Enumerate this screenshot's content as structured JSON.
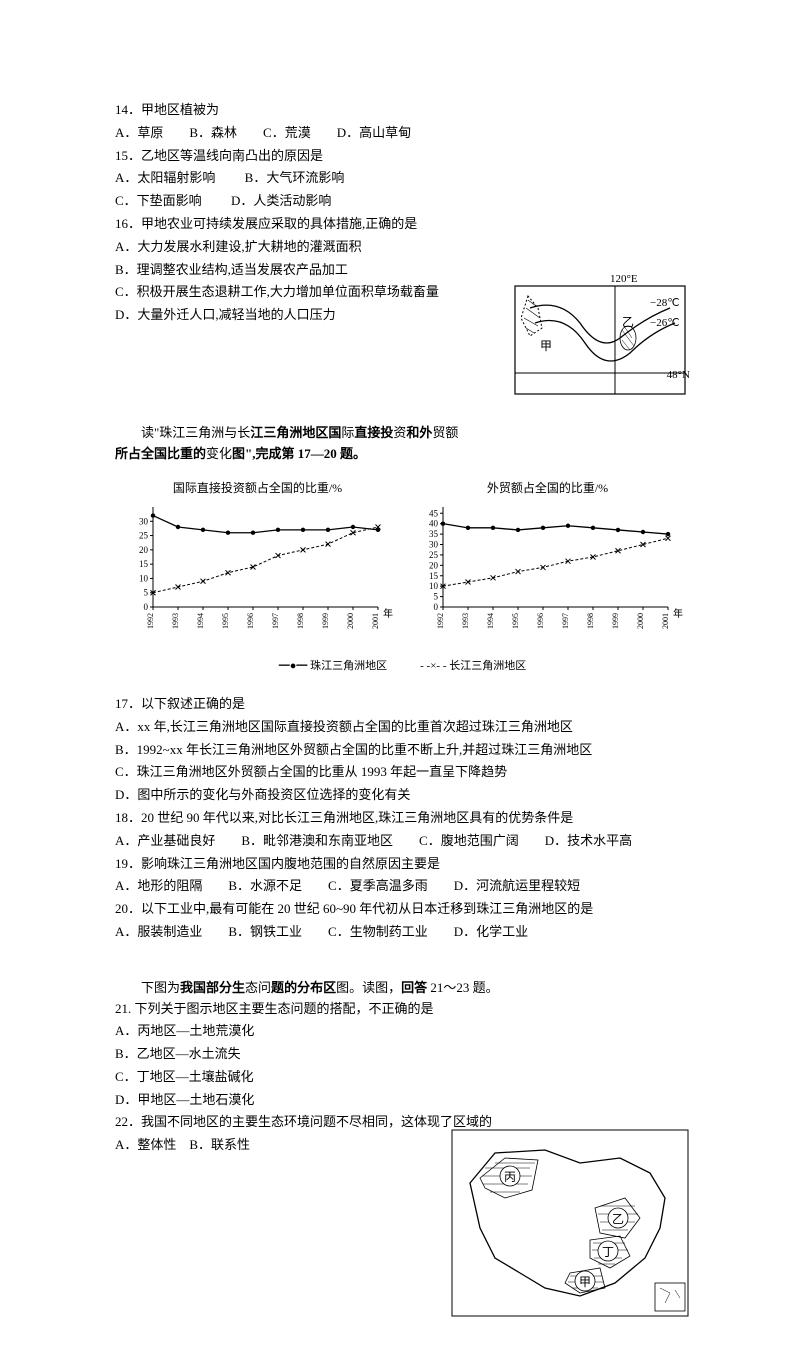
{
  "q14": {
    "stem": "14．甲地区植被为",
    "options": "A．草原　　B．森林　　C．荒漠　　D．高山草甸"
  },
  "q15": {
    "stem": "15．乙地区等温线向南凸出的原因是",
    "optA": "A．太阳辐射影响",
    "optB": "B．大气环流影响",
    "optC": "C．下垫面影响",
    "optD": "D．人类活动影响"
  },
  "q16": {
    "stem": "16．甲地农业可持续发展应采取的具体措施,正确的是",
    "optA": "A．大力发展水利建设,扩大耕地的灌溉面积",
    "optB": "B．理调整农业结构,适当发展农产品加工",
    "optC": "C．积极开展生态退耕工作,大力增加单位面积草场载畜量",
    "optD": "D．大量外迁人口,减轻当地的人口压力"
  },
  "map1": {
    "lon": "120°E",
    "t1": "−28℃",
    "t2": "−26℃",
    "jia": "甲",
    "yi": "乙",
    "lat": "48°N"
  },
  "intro1a": "　　读\"珠江三角洲与长",
  "intro1b": "江三角洲地区国",
  "intro1c": "际",
  "intro1d": "直接投",
  "intro1e": "资",
  "intro1f": "和外",
  "intro1g": "贸额",
  "intro1h": "所占全国比重的",
  "intro1i": "变化",
  "intro1j": "图\",完成第 17—20 题。",
  "chart1": {
    "title": "国际直接投资额占全国的比重/%",
    "ylabels": [
      "30",
      "25",
      "20",
      "15",
      "10",
      "5",
      "0"
    ],
    "xlabels": [
      "1992",
      "1993",
      "1994",
      "1995",
      "1996",
      "1997",
      "1998",
      "1999",
      "2000",
      "2001"
    ],
    "xlabel_suffix": "年",
    "prd": [
      32,
      28,
      27,
      26,
      26,
      27,
      27,
      27,
      28,
      27
    ],
    "yrd": [
      5,
      7,
      9,
      12,
      14,
      18,
      20,
      22,
      26,
      28
    ],
    "ymax": 35,
    "line1_color": "#000",
    "line2_color": "#000"
  },
  "chart2": {
    "title": "外贸额占全国的比重/%",
    "ylabels": [
      "45",
      "40",
      "35",
      "30",
      "25",
      "20",
      "15",
      "10",
      "5",
      "0"
    ],
    "xlabels": [
      "1992",
      "1993",
      "1994",
      "1995",
      "1996",
      "1997",
      "1998",
      "1999",
      "2000",
      "2001"
    ],
    "xlabel_suffix": "年",
    "prd": [
      40,
      38,
      38,
      37,
      38,
      39,
      38,
      37,
      36,
      35
    ],
    "yrd": [
      10,
      12,
      14,
      17,
      19,
      22,
      24,
      27,
      30,
      33
    ],
    "ymax": 48
  },
  "legend": {
    "l1": "珠江三角洲地区",
    "l2": "长江三角洲地区"
  },
  "q17": {
    "stem": "17．以下叙述正确的是",
    "optA": "A．xx 年,长江三角洲地区国际直接投资额占全国的比重首次超过珠江三角洲地区",
    "optB": "B．1992~xx 年长江三角洲地区外贸额占全国的比重不断上升,并超过珠江三角洲地区",
    "optC": "C．珠江三角洲地区外贸额占全国的比重从 1993 年起一直呈下降趋势",
    "optD": "D．图中所示的变化与外商投资区位选择的变化有关"
  },
  "q18": {
    "stem": "18．20 世纪 90 年代以来,对比长江三角洲地区,珠江三角洲地区具有的优势条件是",
    "options": "A．产业基础良好　　B．毗邻港澳和东南亚地区　　C．腹地范围广阔　　D．技术水平高"
  },
  "q19": {
    "stem": "19．影响珠江三角洲地区国内腹地范围的自然原因主要是",
    "options": "A．地形的阻隔　　B．水源不足　　C．夏季高温多雨　　D．河流航运里程较短"
  },
  "q20": {
    "stem": "20．以下工业中,最有可能在 20 世纪 60~90 年代初从日本迁移到珠江三角洲地区的是",
    "options": "A．服装制造业　　B．钢铁工业　　C．生物制药工业　　D．化学工业"
  },
  "intro2a": "　　下图为",
  "intro2b": "我国部分生",
  "intro2c": "态问",
  "intro2d": "题",
  "intro2e": "的分布区",
  "intro2f": "图。读图，",
  "intro2g": "回答",
  "intro2h": " 21～23 题。",
  "q21": {
    "stem": "21. 下列关于图示地区主要生态问题的搭配，不正确的是",
    "optA": "A．丙地区—土地荒漠化",
    "optB": "B．乙地区—水土流失",
    "optC": "C．丁地区—土壤盐碱化",
    "optD": "D．甲地区—土地石漠化"
  },
  "q22": {
    "stem": "22．我国不同地区的主要生态环境问题不尽相同，这体现了区域的",
    "options": "A．整体性　B．联系性"
  },
  "map2": {
    "jia": "甲",
    "yi": "乙",
    "bing": "丙",
    "ding": "丁"
  }
}
